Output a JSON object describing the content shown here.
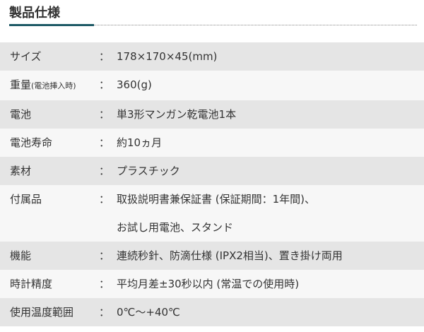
{
  "title": "製品仕様",
  "colors": {
    "accent": "#1e5a66",
    "row_dark": "#e5e5e5",
    "row_light": "#f7f7f7"
  },
  "separator": "：",
  "rows": [
    {
      "label": "サイズ",
      "value": "178×170×45(mm)"
    },
    {
      "label": "重量",
      "label_note": "(電池挿入時)",
      "value": "360(g)"
    },
    {
      "label": "電池",
      "value": "単3形マンガン乾電池1本"
    },
    {
      "label": "電池寿命",
      "value": "約10ヵ月"
    },
    {
      "label": "素材",
      "value": "プラスチック"
    },
    {
      "label": "付属品",
      "value": "取扱説明書兼保証書 (保証期間：1年間)、",
      "value2": "お試し用電池、スタンド"
    },
    {
      "label": "機能",
      "value": "連続秒針、防滴仕様 (IPX2相当)、置き掛け両用"
    },
    {
      "label": "時計精度",
      "value": "平均月差±30秒以内 (常温での使用時)"
    },
    {
      "label": "使用温度範囲",
      "value": "0℃～+40℃"
    }
  ]
}
